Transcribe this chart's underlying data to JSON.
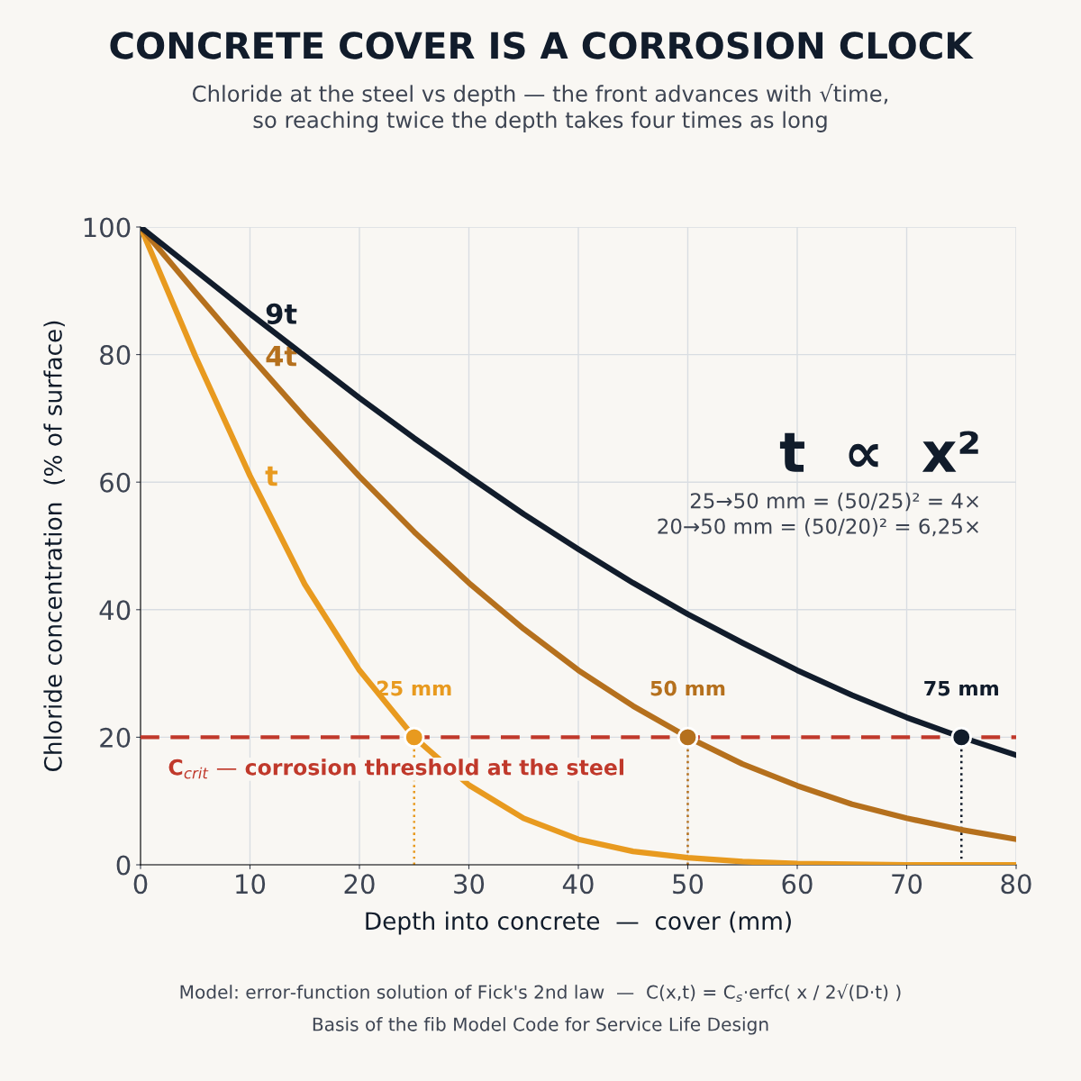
{
  "chart_data": {
    "type": "line",
    "title": "CONCRETE COVER IS A CORROSION CLOCK",
    "subtitle": "Chloride at the steel vs depth — the front advances with √time,\nso reaching twice the depth takes four times as long",
    "xlabel": "Depth into concrete  —  cover (mm)",
    "ylabel": "Chloride concentration  (% of surface)",
    "x": [
      0,
      5,
      10,
      15,
      20,
      25,
      30,
      35,
      40,
      45,
      50,
      55,
      60,
      65,
      70,
      75,
      80
    ],
    "series": [
      {
        "name": "t",
        "color": "#e89a1f",
        "values": [
          100,
          79.8,
          61,
          44,
          30.5,
          20,
          12.5,
          7.3,
          4,
          2.1,
          1.1,
          0.5,
          0.2,
          0.1,
          0,
          0,
          0
        ]
      },
      {
        "name": "4t",
        "color": "#b5701d",
        "values": [
          100,
          89.8,
          79.8,
          70.1,
          60.9,
          52.2,
          44.2,
          37,
          30.5,
          24.9,
          20,
          15.8,
          12.4,
          9.5,
          7.3,
          5.5,
          4
        ]
      },
      {
        "name": "9t",
        "color": "#111c2b",
        "values": [
          100,
          93.2,
          86.4,
          79.8,
          73.2,
          66.9,
          60.9,
          55,
          49.5,
          44.2,
          39.3,
          34.8,
          30.5,
          26.6,
          23.1,
          20,
          17.2
        ]
      },
      {
        "type": "line",
        "x": [
          25,
          25
        ],
        "values": [
          0,
          20
        ],
        "color": "#e89a1f",
        "line_style": "dotted"
      },
      {
        "type": "line",
        "x": [
          50,
          50
        ],
        "values": [
          0,
          20
        ],
        "color": "#b5701d",
        "line_style": "dotted"
      },
      {
        "type": "line",
        "x": [
          75,
          75
        ],
        "values": [
          0,
          20
        ],
        "color": "#111c2b",
        "line_style": "dotted"
      },
      {
        "type": "scatter",
        "x": [
          25,
          50,
          75
        ],
        "values": [
          20,
          20,
          20
        ],
        "colors": [
          "#e89a1f",
          "#b5701d",
          "#111c2b"
        ],
        "marker": "circle"
      }
    ],
    "ref_lines": [
      {
        "axis": "y",
        "value": 20,
        "label": "C$_{crit}$ — corrosion threshold at the steel",
        "color": "#c0392b",
        "line_style": "dashed"
      }
    ],
    "annotations": [
      "t  ∝  x²",
      "25→50 mm = (50/25)² = 4×",
      "20→50 mm = (50/20)² = 6,25×",
      "Model: error-function solution of Fick's 2nd law  —  C(x,t) = C$_{s}$·erfc( x / 2√(D·t) )",
      "Basis of the fib Model Code for Service Life Design",
      {
        "text": "25 mm",
        "x": 25,
        "y": 20
      },
      {
        "text": "50 mm",
        "x": 50,
        "y": 20
      },
      {
        "text": "75 mm",
        "x": 75,
        "y": 20
      }
    ],
    "xlim": [
      0,
      80
    ],
    "ylim": [
      0,
      100
    ],
    "xticks": [
      0,
      10,
      20,
      30,
      40,
      50,
      60,
      70,
      80
    ],
    "yticks": [
      0,
      20,
      40,
      60,
      80,
      100
    ],
    "grid": true,
    "legend": false,
    "line_style": "solid",
    "marker": "none"
  }
}
